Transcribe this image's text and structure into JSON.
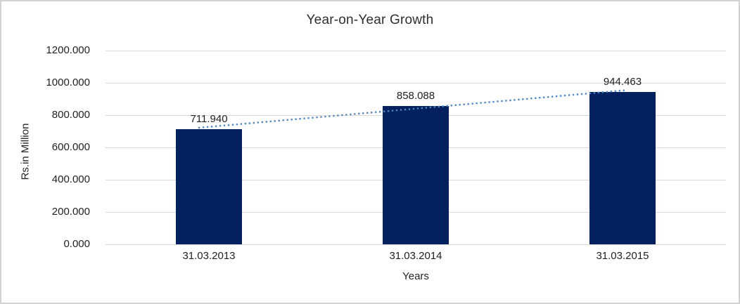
{
  "window": {
    "background": "#ffffff",
    "border_color": "#d2d2d2"
  },
  "chart_data": {
    "type": "bar",
    "title": "Year-on-Year Growth",
    "xlabel": "Years",
    "ylabel": "Rs.in Million",
    "categories": [
      "31.03.2013",
      "31.03.2014",
      "31.03.2015"
    ],
    "values": [
      711.94,
      858.088,
      944.463
    ],
    "data_labels": [
      "711.940",
      "858.088",
      "944.463"
    ],
    "ylim": [
      0,
      1200
    ],
    "y_ticks": [
      0,
      200,
      400,
      600,
      800,
      1000,
      1200
    ],
    "y_tick_labels": [
      "0.000",
      "200.000",
      "400.000",
      "600.000",
      "800.000",
      "1000.000",
      "1200.000"
    ],
    "grid": "horizontal",
    "legend": "none",
    "bar_color": "#04215f",
    "gridline_color": "#d9d9d9",
    "text_color": "#1f1f1f",
    "trendline": {
      "type": "linear",
      "style": "dotted",
      "color": "#4a86c8",
      "start_value": 721.9,
      "end_value": 954.4
    }
  }
}
